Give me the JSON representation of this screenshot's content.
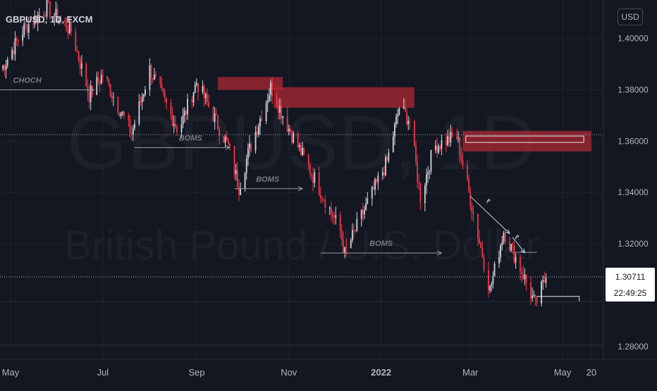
{
  "header": {
    "symbol": "GBPUSD, 1D, FXCM",
    "currency": "USD"
  },
  "watermark": {
    "ticker": "GBPUSD, 1D",
    "name": "British Pound / U.S. Dollar"
  },
  "colors": {
    "background": "#131722",
    "grid": "#1e222d",
    "axis_text": "#b2b5be",
    "up": "#d1d4dc",
    "down": "#f23645",
    "zone": "#b22833",
    "price_line": "#b2b5be",
    "price_label_bg": "#ffffff",
    "price_label_text": "#131722",
    "annotation": "#9598a1"
  },
  "chart_data": {
    "type": "candlestick",
    "interval": "1D",
    "ylim": [
      1.275,
      1.415
    ],
    "y_ticks": [
      1.28,
      1.32,
      1.34,
      1.36,
      1.38,
      1.4
    ],
    "y_tick_labels": [
      "1.28000",
      "1.32000",
      "1.34000",
      "1.36000",
      "1.38000",
      "1.40000"
    ],
    "x_range": [
      "2021-04-24",
      "2022-05-28"
    ],
    "x_ticks": [
      {
        "date": "2021-05-01",
        "label": "May"
      },
      {
        "date": "2021-07-01",
        "label": "Jul"
      },
      {
        "date": "2021-09-01",
        "label": "Sep"
      },
      {
        "date": "2021-11-01",
        "label": "Nov"
      },
      {
        "date": "2022-01-01",
        "label": "2022"
      },
      {
        "date": "2022-03-01",
        "label": "Mar"
      },
      {
        "date": "2022-05-01",
        "label": "May"
      },
      {
        "date": "2022-05-20",
        "label": "20"
      }
    ],
    "close_path": [
      [
        "2021-04-24",
        1.387
      ],
      [
        "2021-05-10",
        1.404
      ],
      [
        "2021-05-25",
        1.412
      ],
      [
        "2021-06-10",
        1.403
      ],
      [
        "2021-06-22",
        1.378
      ],
      [
        "2021-07-01",
        1.386
      ],
      [
        "2021-07-20",
        1.363
      ],
      [
        "2021-08-01",
        1.388
      ],
      [
        "2021-08-20",
        1.364
      ],
      [
        "2021-09-01",
        1.383
      ],
      [
        "2021-09-12",
        1.37
      ],
      [
        "2021-09-22",
        1.358
      ],
      [
        "2021-09-29",
        1.342
      ],
      [
        "2021-10-05",
        1.355
      ],
      [
        "2021-10-20",
        1.381
      ],
      [
        "2021-11-01",
        1.365
      ],
      [
        "2021-11-20",
        1.343
      ],
      [
        "2021-12-05",
        1.325
      ],
      [
        "2021-12-08",
        1.316
      ],
      [
        "2021-12-20",
        1.332
      ],
      [
        "2022-01-05",
        1.352
      ],
      [
        "2022-01-13",
        1.373
      ],
      [
        "2022-01-20",
        1.368
      ],
      [
        "2022-01-27",
        1.338
      ],
      [
        "2022-02-05",
        1.358
      ],
      [
        "2022-02-20",
        1.362
      ],
      [
        "2022-02-28",
        1.34
      ],
      [
        "2022-03-14",
        1.302
      ],
      [
        "2022-03-23",
        1.325
      ],
      [
        "2022-04-05",
        1.308
      ],
      [
        "2022-04-13",
        1.296
      ],
      [
        "2022-04-20",
        1.307
      ]
    ],
    "zones": [
      {
        "from": "2021-09-15",
        "to": "2021-10-28",
        "low": 1.38,
        "high": 1.385
      },
      {
        "from": "2021-10-22",
        "to": "2022-01-23",
        "low": 1.373,
        "high": 1.381
      },
      {
        "from": "2022-02-24",
        "to": "2022-05-20",
        "low": 1.356,
        "high": 1.364
      }
    ],
    "outline_boxes": [
      {
        "from": "2022-02-26",
        "to": "2022-05-15",
        "low": 1.3595,
        "high": 1.362
      },
      {
        "from": "2022-04-14",
        "to": "2022-05-12",
        "low": 1.2975,
        "high": 1.2995
      }
    ],
    "annotations": [
      {
        "text": "CHOCH",
        "date_from": "2021-04-24",
        "date_to": "2021-06-25",
        "price": 1.38,
        "label_date": "2021-05-12"
      },
      {
        "text": "BOMS",
        "date_from": "2021-07-22",
        "date_to": "2021-09-23",
        "price": 1.3575,
        "label_date": "2021-08-28"
      },
      {
        "text": "BOMS",
        "date_from": "2021-09-26",
        "date_to": "2021-11-10",
        "price": 1.3415,
        "label_date": "2021-10-18"
      },
      {
        "text": "BOMS",
        "date_from": "2021-11-22",
        "date_to": "2022-02-10",
        "price": 1.3164,
        "label_date": "2022-01-01"
      }
    ],
    "arrows": [
      {
        "from": [
          "2022-03-01",
          1.3385
        ],
        "to": [
          "2022-03-27",
          1.324
        ]
      },
      {
        "from": [
          "2022-03-29",
          1.3225
        ],
        "to": [
          "2022-04-06",
          1.3165
        ]
      }
    ],
    "arrow_labels": [
      {
        "text": "م",
        "date": "2022-03-13",
        "price": 1.3365
      },
      {
        "text": "م",
        "date": "2022-04-01",
        "price": 1.3225
      }
    ],
    "level_lines": [
      {
        "price": 1.3625,
        "style": "dotted",
        "date_from": "2021-04-24",
        "date_to": "2022-05-28"
      },
      {
        "price": 1.3167,
        "style": "solid",
        "date_from": "2022-03-29",
        "date_to": "2022-04-14"
      }
    ],
    "extra_lines": [
      1.2975,
      1.2806
    ],
    "last_price": {
      "value": "1.30711",
      "countdown": "22:49:25",
      "price": 1.30711
    }
  }
}
